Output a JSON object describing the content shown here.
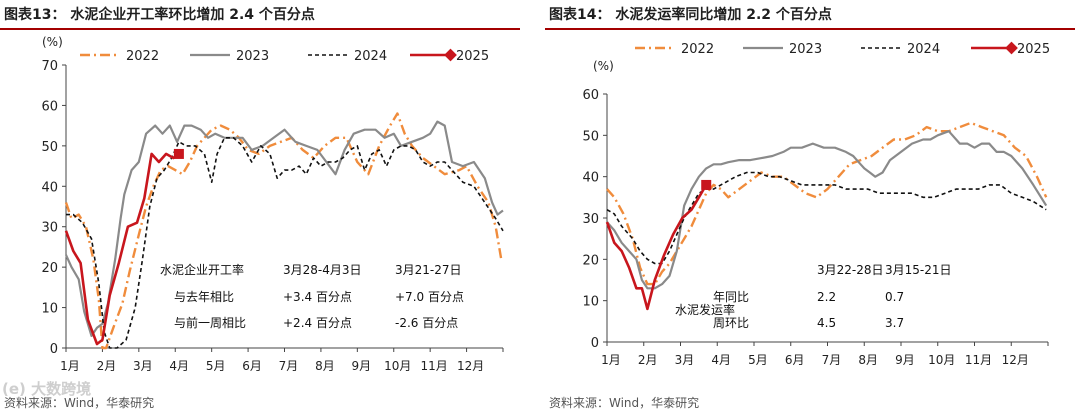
{
  "panels": [
    {
      "title": "图表13：  水泥企业开工率环比增加 2.4 个百分点",
      "source": "资料来源：Wind，华泰研究",
      "chart_data": {
        "type": "line",
        "ylabel": "(%)",
        "ylim": [
          0,
          70
        ],
        "yticks": [
          0,
          10,
          20,
          30,
          40,
          50,
          60,
          70
        ],
        "xlim": [
          1,
          13
        ],
        "xticks": [
          "1月",
          "2月",
          "3月",
          "4月",
          "5月",
          "6月",
          "7月",
          "8月",
          "9月",
          "10月",
          "11月",
          "12月"
        ],
        "legend": [
          "2022",
          "2023",
          "2024",
          "2025"
        ],
        "series": [
          {
            "name": "2022",
            "color": "#f08c3c",
            "style": "dashdot",
            "width": 2.4,
            "x": [
              1.0,
              1.15,
              1.35,
              1.55,
              1.75,
              1.9,
              2.0,
              2.1,
              2.3,
              2.55,
              2.75,
              3.0,
              3.2,
              3.4,
              3.6,
              3.8,
              4.0,
              4.2,
              4.4,
              4.6,
              4.8,
              5.0,
              5.25,
              5.5,
              5.75,
              6.0,
              6.3,
              6.6,
              6.9,
              7.2,
              7.5,
              7.8,
              8.1,
              8.4,
              8.7,
              9.0,
              9.3,
              9.6,
              9.9,
              10.1,
              10.3,
              10.5,
              10.8,
              11.1,
              11.4,
              11.8,
              12.0,
              12.3,
              12.6,
              12.8,
              12.95
            ],
            "y": [
              36,
              32,
              33,
              30,
              22,
              12,
              0,
              0,
              5,
              11,
              19,
              28,
              35,
              40,
              44,
              45,
              44,
              43,
              46,
              50,
              52,
              54,
              55,
              54,
              52,
              49,
              48,
              50,
              51,
              52,
              49,
              47,
              50,
              52,
              52,
              46,
              43,
              50,
              55,
              58,
              53,
              50,
              47,
              45,
              43,
              44,
              45,
              40,
              36,
              30,
              22
            ]
          },
          {
            "name": "2023",
            "color": "#8a8a8a",
            "style": "solid",
            "width": 2.2,
            "x": [
              1.0,
              1.15,
              1.35,
              1.5,
              1.7,
              1.85,
              2.0,
              2.15,
              2.35,
              2.5,
              2.6,
              2.8,
              3.0,
              3.2,
              3.45,
              3.65,
              3.85,
              4.05,
              4.25,
              4.45,
              4.7,
              4.9,
              5.1,
              5.35,
              5.6,
              5.85,
              6.1,
              6.4,
              6.7,
              7.0,
              7.3,
              7.6,
              7.9,
              8.15,
              8.4,
              8.65,
              8.9,
              9.2,
              9.5,
              9.75,
              10.0,
              10.2,
              10.5,
              10.8,
              11.0,
              11.2,
              11.4,
              11.6,
              11.9,
              12.2,
              12.5,
              12.7,
              12.85,
              13.0
            ],
            "y": [
              23,
              20,
              17,
              9,
              3,
              5,
              6,
              11,
              22,
              32,
              38,
              44,
              46,
              53,
              55,
              53,
              55,
              51,
              55,
              55,
              54,
              52,
              53,
              52,
              52,
              52,
              49,
              50,
              52,
              54,
              51,
              50,
              49,
              46,
              43,
              49,
              53,
              54,
              54,
              52,
              53,
              50,
              51,
              52,
              53,
              56,
              55,
              46,
              45,
              46,
              42,
              36,
              33,
              34
            ]
          },
          {
            "name": "2024",
            "color": "#111111",
            "style": "dashed",
            "width": 1.6,
            "x": [
              1.0,
              1.2,
              1.45,
              1.7,
              1.9,
              2.05,
              2.2,
              2.4,
              2.65,
              2.9,
              3.1,
              3.3,
              3.5,
              3.7,
              3.9,
              4.1,
              4.3,
              4.55,
              4.8,
              5.0,
              5.15,
              5.35,
              5.6,
              5.85,
              6.1,
              6.35,
              6.6,
              6.8,
              7.0,
              7.2,
              7.4,
              7.6,
              7.8,
              8.0,
              8.2,
              8.4,
              8.6,
              8.8,
              9.0,
              9.2,
              9.4,
              9.6,
              9.8,
              10.0,
              10.2,
              10.4,
              10.6,
              10.8,
              11.0,
              11.2,
              11.4,
              11.6,
              11.9,
              12.2,
              12.5,
              12.8,
              13.0
            ],
            "y": [
              33,
              33,
              31,
              27,
              16,
              4,
              0,
              0,
              2,
              10,
              22,
              35,
              42,
              44,
              47,
              51,
              50,
              50,
              48,
              41,
              48,
              52,
              52,
              50,
              46,
              50,
              48,
              42,
              44,
              44,
              45,
              43,
              47,
              45,
              46,
              46,
              47,
              49,
              50,
              44,
              48,
              49,
              45,
              49,
              50,
              50,
              49,
              46,
              45,
              46,
              46,
              44,
              41,
              40,
              36,
              32,
              29
            ]
          },
          {
            "name": "2025",
            "color": "#c8161d",
            "style": "solid",
            "width": 2.6,
            "x": [
              1.0,
              1.2,
              1.4,
              1.6,
              1.85,
              2.0,
              2.2,
              2.45,
              2.7,
              2.95,
              3.15,
              3.35,
              3.55,
              3.75,
              3.95,
              4.1
            ],
            "y": [
              29,
              24,
              21,
              7,
              1,
              2,
              13,
              21,
              30,
              31,
              37,
              48,
              46,
              48,
              47,
              48
            ],
            "marker_last": true
          }
        ]
      },
      "table": {
        "header": [
          "水泥企业开工率",
          "3月28-4月3日",
          "3月21-27日"
        ],
        "rows": [
          [
            "与去年相比",
            "+3.4 百分点",
            "+7.0 百分点"
          ],
          [
            "与前一周相比",
            "+2.4 百分点",
            "-2.6 百分点"
          ]
        ]
      }
    },
    {
      "title": "图表14：  水泥发运率同比增加 2.2 个百分点",
      "source": "资料来源：Wind，华泰研究",
      "chart_data": {
        "type": "line",
        "ylabel": "(%)",
        "ylim": [
          0,
          60
        ],
        "yticks": [
          0,
          10,
          20,
          30,
          40,
          50,
          60
        ],
        "xlim": [
          1,
          13
        ],
        "xticks": [
          "1月",
          "2月",
          "3月",
          "4月",
          "5月",
          "6月",
          "7月",
          "8月",
          "9月",
          "10月",
          "11月",
          "12月"
        ],
        "legend": [
          "2022",
          "2023",
          "2024",
          "2025"
        ],
        "series": [
          {
            "name": "2022",
            "color": "#f08c3c",
            "style": "dashdot",
            "width": 2.4,
            "x": [
              1.0,
              1.2,
              1.45,
              1.7,
              1.9,
              2.1,
              2.3,
              2.5,
              2.7,
              2.9,
              3.1,
              3.3,
              3.5,
              3.7,
              3.9,
              4.1,
              4.3,
              4.6,
              4.9,
              5.2,
              5.5,
              5.8,
              6.1,
              6.4,
              6.7,
              7.0,
              7.3,
              7.6,
              7.9,
              8.2,
              8.5,
              8.8,
              9.1,
              9.4,
              9.7,
              10.0,
              10.3,
              10.6,
              10.9,
              11.2,
              11.5,
              11.8,
              12.1,
              12.4,
              12.7,
              12.95
            ],
            "y": [
              37,
              35,
              31,
              25,
              18,
              14,
              14,
              17,
              19,
              22,
              25,
              28,
              32,
              36,
              38,
              37,
              35,
              37,
              39,
              41,
              40,
              40,
              38,
              36,
              35,
              37,
              40,
              43,
              44,
              45,
              47,
              49,
              49,
              50,
              52,
              51,
              51,
              52,
              53,
              52,
              51,
              50,
              47,
              45,
              40,
              35
            ]
          },
          {
            "name": "2023",
            "color": "#8a8a8a",
            "style": "solid",
            "width": 2.2,
            "x": [
              1.0,
              1.2,
              1.4,
              1.6,
              1.8,
              1.95,
              2.1,
              2.3,
              2.5,
              2.7,
              2.9,
              3.1,
              3.3,
              3.5,
              3.7,
              3.9,
              4.1,
              4.3,
              4.6,
              4.9,
              5.2,
              5.5,
              5.8,
              6.0,
              6.3,
              6.6,
              6.9,
              7.2,
              7.5,
              7.7,
              7.9,
              8.0,
              8.15,
              8.3,
              8.5,
              8.7,
              9.0,
              9.3,
              9.6,
              9.8,
              10.0,
              10.3,
              10.6,
              10.8,
              11.0,
              11.2,
              11.4,
              11.6,
              11.8,
              12.0,
              12.3,
              12.6,
              12.95
            ],
            "y": [
              29,
              27,
              24,
              22,
              20,
              15,
              13,
              13,
              14,
              16,
              22,
              33,
              37,
              40,
              42,
              43,
              43,
              43.5,
              44,
              44,
              44.5,
              45,
              46,
              47,
              47,
              48,
              47,
              47,
              46,
              45,
              43,
              42,
              41,
              40,
              41,
              44,
              46,
              48,
              49,
              49,
              50,
              51,
              48,
              48,
              47,
              48,
              48,
              46,
              46,
              45,
              42,
              38,
              33
            ]
          },
          {
            "name": "2024",
            "color": "#111111",
            "style": "dashed",
            "width": 1.6,
            "x": [
              1.0,
              1.2,
              1.4,
              1.7,
              1.9,
              2.1,
              2.3,
              2.5,
              2.7,
              2.9,
              3.1,
              3.3,
              3.5,
              3.7,
              3.9,
              4.1,
              4.3,
              4.5,
              4.8,
              5.1,
              5.4,
              5.7,
              6.0,
              6.3,
              6.6,
              6.9,
              7.2,
              7.5,
              7.8,
              8.1,
              8.4,
              8.7,
              9.0,
              9.3,
              9.6,
              9.9,
              10.2,
              10.5,
              10.8,
              11.1,
              11.4,
              11.7,
              12.0,
              12.3,
              12.6,
              12.95
            ],
            "y": [
              32,
              31,
              28,
              25,
              22,
              20,
              19,
              19,
              22,
              26,
              30,
              33,
              36,
              37,
              37,
              38,
              39,
              40,
              41,
              41,
              40,
              40,
              39,
              38,
              38,
              38,
              38,
              37,
              37,
              37,
              36,
              36,
              36,
              36,
              35,
              35,
              36,
              37,
              37,
              37,
              38,
              38,
              36,
              35,
              34,
              32
            ]
          },
          {
            "name": "2025",
            "color": "#c8161d",
            "style": "solid",
            "width": 2.6,
            "x": [
              1.0,
              1.2,
              1.4,
              1.6,
              1.8,
              1.95,
              2.1,
              2.3,
              2.55,
              2.8,
              3.05,
              3.3,
              3.5,
              3.7
            ],
            "y": [
              29,
              24,
              22,
              18,
              13,
              13,
              8,
              15,
              21,
              26,
              30,
              32,
              35,
              38
            ],
            "marker_last": true
          }
        ]
      },
      "table": {
        "header": [
          "",
          "3月22-28日",
          "3月15-21日"
        ],
        "rows": [
          [
            "年同比",
            "2.2",
            "0.7"
          ],
          [
            "周环比",
            "4.5",
            "3.7"
          ]
        ],
        "side_label": "水泥发运率"
      }
    }
  ],
  "watermark": "(e) 大数跨境"
}
